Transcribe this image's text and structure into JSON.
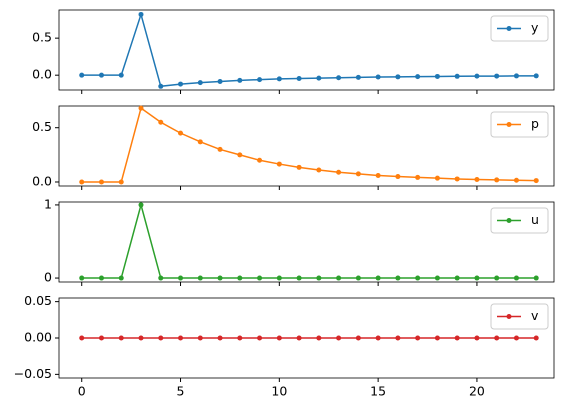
{
  "chart_data": [
    {
      "type": "line",
      "x": [
        0,
        1,
        2,
        3,
        4,
        5,
        6,
        7,
        8,
        9,
        10,
        11,
        12,
        13,
        14,
        15,
        16,
        17,
        18,
        19,
        20,
        21,
        22,
        23
      ],
      "series": [
        {
          "name": "y",
          "color": "#1f77b4",
          "values": [
            0,
            0,
            0,
            0.82,
            -0.15,
            -0.12,
            -0.1,
            -0.085,
            -0.07,
            -0.06,
            -0.05,
            -0.045,
            -0.04,
            -0.035,
            -0.03,
            -0.025,
            -0.022,
            -0.02,
            -0.017,
            -0.015,
            -0.013,
            -0.012,
            -0.01,
            -0.009
          ]
        }
      ],
      "xlim": [
        -1.15,
        23.9
      ],
      "xticks": [
        0,
        5,
        10,
        15,
        20
      ],
      "ylim": [
        -0.2,
        0.88
      ],
      "yticks": [
        {
          "value": 0,
          "label": "0.0"
        },
        0.5
      ],
      "legend": "upper right"
    },
    {
      "type": "line",
      "x": [
        0,
        1,
        2,
        3,
        4,
        5,
        6,
        7,
        8,
        9,
        10,
        11,
        12,
        13,
        14,
        15,
        16,
        17,
        18,
        19,
        20,
        21,
        22,
        23
      ],
      "series": [
        {
          "name": "p",
          "color": "#ff7f0e",
          "values": [
            0,
            0,
            0,
            0.68,
            0.55,
            0.45,
            0.37,
            0.3,
            0.25,
            0.2,
            0.165,
            0.135,
            0.11,
            0.09,
            0.075,
            0.06,
            0.05,
            0.042,
            0.035,
            0.028,
            0.023,
            0.019,
            0.016,
            0.013
          ]
        }
      ],
      "xlim": [
        -1.15,
        23.9
      ],
      "xticks": [
        0,
        5,
        10,
        15,
        20
      ],
      "ylim": [
        -0.037,
        0.7
      ],
      "yticks": [
        {
          "value": 0,
          "label": "0.0"
        },
        0.5
      ],
      "legend": "upper right"
    },
    {
      "type": "line",
      "x": [
        0,
        1,
        2,
        3,
        4,
        5,
        6,
        7,
        8,
        9,
        10,
        11,
        12,
        13,
        14,
        15,
        16,
        17,
        18,
        19,
        20,
        21,
        22,
        23
      ],
      "series": [
        {
          "name": "u",
          "color": "#2ca02c",
          "values": [
            0,
            0,
            0,
            1,
            0,
            0,
            0,
            0,
            0,
            0,
            0,
            0,
            0,
            0,
            0,
            0,
            0,
            0,
            0,
            0,
            0,
            0,
            0,
            0
          ]
        }
      ],
      "xlim": [
        -1.15,
        23.9
      ],
      "xticks": [
        0,
        5,
        10,
        15,
        20
      ],
      "ylim": [
        -0.054,
        1.04
      ],
      "yticks": [
        0,
        1
      ],
      "legend": "upper right"
    },
    {
      "type": "line",
      "x": [
        0,
        1,
        2,
        3,
        4,
        5,
        6,
        7,
        8,
        9,
        10,
        11,
        12,
        13,
        14,
        15,
        16,
        17,
        18,
        19,
        20,
        21,
        22,
        23
      ],
      "series": [
        {
          "name": "v",
          "color": "#d62728",
          "values": [
            0,
            0,
            0,
            0,
            0,
            0,
            0,
            0,
            0,
            0,
            0,
            0,
            0,
            0,
            0,
            0,
            0,
            0,
            0,
            0,
            0,
            0,
            0,
            0
          ]
        }
      ],
      "xlim": [
        -1.15,
        23.9
      ],
      "xticks": [
        0,
        5,
        10,
        15,
        20
      ],
      "ylim": [
        -0.055,
        0.055
      ],
      "yticks": [
        {
          "value": -0.05,
          "label": "−0.05"
        },
        {
          "value": 0,
          "label": "0.00"
        },
        {
          "value": 0.05,
          "label": "0.05"
        }
      ],
      "legend": "upper right"
    }
  ]
}
